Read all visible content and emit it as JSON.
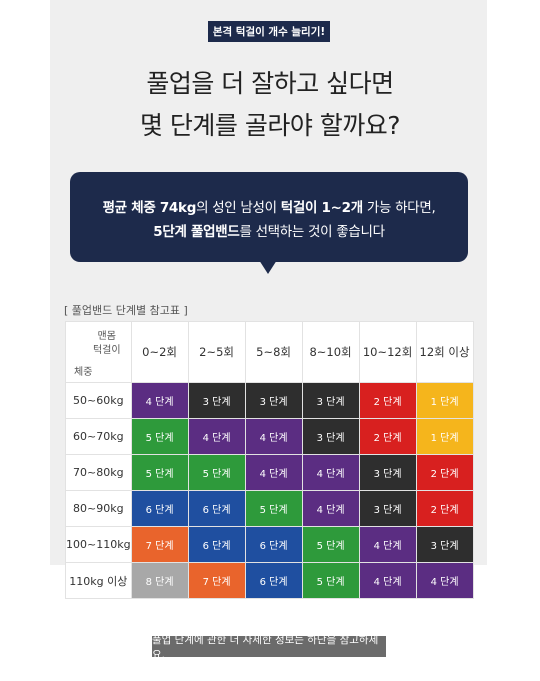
{
  "badge": "본격 턱걸이 개수 늘리기!",
  "headline": [
    "풀업을 더 잘하고 싶다면",
    "몇 단계를 골라야 할까요?"
  ],
  "bubble": {
    "line1": [
      {
        "text": "평균 체중 74kg",
        "bold": true
      },
      {
        "text": "의 성인 남성이 ",
        "bold": false
      },
      {
        "text": "턱걸이 1~2개",
        "bold": true
      },
      {
        "text": " 가능 하다면,",
        "bold": false
      }
    ],
    "line2": [
      {
        "text": "5단계 풀업밴드",
        "bold": true
      },
      {
        "text": "를 선택하는 것이 좋습니다",
        "bold": false
      }
    ]
  },
  "table_title": "[ 풀업밴드 단계별 참고표 ]",
  "table": {
    "corner_top": "맨몸\n턱걸이",
    "corner_bottom": "체중",
    "columns": [
      "0~2회",
      "2~5회",
      "5~8회",
      "8~10회",
      "10~12회",
      "12회 이상"
    ],
    "rows": [
      {
        "weight": "50~60kg",
        "cells": [
          {
            "t": "4 단계",
            "c": "#5b2d82"
          },
          {
            "t": "3 단계",
            "c": "#2e2e2e"
          },
          {
            "t": "3 단계",
            "c": "#2e2e2e"
          },
          {
            "t": "3 단계",
            "c": "#2e2e2e"
          },
          {
            "t": "2 단계",
            "c": "#d8201f"
          },
          {
            "t": "1 단계",
            "c": "#f5b51c"
          }
        ]
      },
      {
        "weight": "60~70kg",
        "cells": [
          {
            "t": "5 단계",
            "c": "#2e9a3b"
          },
          {
            "t": "4 단계",
            "c": "#5b2d82"
          },
          {
            "t": "4 단계",
            "c": "#5b2d82"
          },
          {
            "t": "3 단계",
            "c": "#2e2e2e"
          },
          {
            "t": "2 단계",
            "c": "#d8201f"
          },
          {
            "t": "1 단계",
            "c": "#f5b51c"
          }
        ]
      },
      {
        "weight": "70~80kg",
        "cells": [
          {
            "t": "5 단계",
            "c": "#2e9a3b"
          },
          {
            "t": "5 단계",
            "c": "#2e9a3b"
          },
          {
            "t": "4 단계",
            "c": "#5b2d82"
          },
          {
            "t": "4 단계",
            "c": "#5b2d82"
          },
          {
            "t": "3 단계",
            "c": "#2e2e2e"
          },
          {
            "t": "2 단계",
            "c": "#d8201f"
          }
        ]
      },
      {
        "weight": "80~90kg",
        "cells": [
          {
            "t": "6 단계",
            "c": "#1f4fa0"
          },
          {
            "t": "6 단계",
            "c": "#1f4fa0"
          },
          {
            "t": "5 단계",
            "c": "#2e9a3b"
          },
          {
            "t": "4 단계",
            "c": "#5b2d82"
          },
          {
            "t": "3 단계",
            "c": "#2e2e2e"
          },
          {
            "t": "2 단계",
            "c": "#d8201f"
          }
        ]
      },
      {
        "weight": "100~110kg",
        "cells": [
          {
            "t": "7 단계",
            "c": "#e9642c"
          },
          {
            "t": "6 단계",
            "c": "#1f4fa0"
          },
          {
            "t": "6 단계",
            "c": "#1f4fa0"
          },
          {
            "t": "5 단계",
            "c": "#2e9a3b"
          },
          {
            "t": "4 단계",
            "c": "#5b2d82"
          },
          {
            "t": "3 단계",
            "c": "#2e2e2e"
          }
        ]
      },
      {
        "weight": "110kg 이상",
        "cells": [
          {
            "t": "8 단계",
            "c": "#a8a8a8"
          },
          {
            "t": "7 단계",
            "c": "#e9642c"
          },
          {
            "t": "6 단계",
            "c": "#1f4fa0"
          },
          {
            "t": "5 단계",
            "c": "#2e9a3b"
          },
          {
            "t": "4 단계",
            "c": "#5b2d82"
          },
          {
            "t": "4 단계",
            "c": "#5b2d82"
          }
        ]
      }
    ]
  },
  "footer": "풀업 단계에 관한 더 자세한 정보는 하단을 참고하세요."
}
